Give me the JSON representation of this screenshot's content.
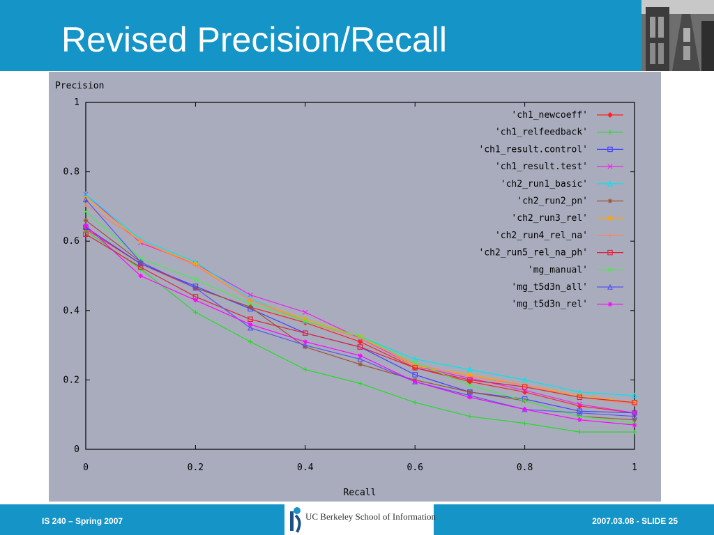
{
  "slide": {
    "title": "Revised Precision/Recall",
    "footer_left": "IS 240 – Spring 2007",
    "footer_right": "2007.03.08 - SLIDE 25",
    "logo_text": "UC Berkeley School of Information"
  },
  "colors": {
    "header": "#1594c8",
    "plot_background": "#a9acbd"
  },
  "chart_data": {
    "type": "line",
    "title": "",
    "xlabel": "Recall",
    "ylabel": "Precision",
    "xlim": [
      0,
      1
    ],
    "ylim": [
      0,
      1
    ],
    "x_ticks": [
      "0",
      "0.2",
      "0.4",
      "0.6",
      "0.8",
      "1"
    ],
    "y_ticks": [
      "0",
      "0.2",
      "0.4",
      "0.6",
      "0.8",
      "1"
    ],
    "grid": false,
    "legend_position": "top-right",
    "x": [
      0,
      0.1,
      0.2,
      0.3,
      0.4,
      0.5,
      0.6,
      0.7,
      0.8,
      0.9,
      1.0
    ],
    "series": [
      {
        "name": "'ch1_newcoeff'",
        "color": "#ff2020",
        "marker": "diamond",
        "values": [
          0.635,
          0.535,
          0.465,
          0.41,
          0.365,
          0.31,
          0.235,
          0.195,
          0.165,
          0.125,
          0.105
        ]
      },
      {
        "name": "'ch1_relfeedback'",
        "color": "#22dd22",
        "marker": "plus",
        "values": [
          0.63,
          0.52,
          0.395,
          0.31,
          0.23,
          0.19,
          0.135,
          0.095,
          0.075,
          0.05,
          0.05
        ]
      },
      {
        "name": "'ch1_result.control'",
        "color": "#4040ff",
        "marker": "square",
        "values": [
          0.64,
          0.535,
          0.47,
          0.405,
          0.335,
          0.295,
          0.215,
          0.165,
          0.145,
          0.11,
          0.105
        ]
      },
      {
        "name": "'ch1_result.test'",
        "color": "#ee22ee",
        "marker": "x",
        "values": [
          0.735,
          0.595,
          0.535,
          0.445,
          0.395,
          0.32,
          0.24,
          0.205,
          0.17,
          0.13,
          0.105
        ]
      },
      {
        "name": "'ch2_run1_basic'",
        "color": "#00e5ee",
        "marker": "triangle",
        "values": [
          0.735,
          0.605,
          0.54,
          0.435,
          0.37,
          0.325,
          0.26,
          0.23,
          0.2,
          0.165,
          0.155
        ]
      },
      {
        "name": "'ch2_run2_pn'",
        "color": "#a0522d",
        "marker": "asterisk",
        "values": [
          0.66,
          0.54,
          0.465,
          0.41,
          0.295,
          0.245,
          0.2,
          0.165,
          0.14,
          0.095,
          0.085
        ]
      },
      {
        "name": "'ch2_run3_rel'",
        "color": "#ffa500",
        "marker": "diamond",
        "values": [
          0.725,
          0.6,
          0.535,
          0.43,
          0.375,
          0.325,
          0.24,
          0.215,
          0.185,
          0.155,
          0.135
        ]
      },
      {
        "name": "'ch2_run4_rel_na'",
        "color": "#ff8060",
        "marker": "plus",
        "values": [
          0.705,
          0.6,
          0.53,
          0.43,
          0.37,
          0.32,
          0.245,
          0.21,
          0.185,
          0.15,
          0.13
        ]
      },
      {
        "name": "'ch2_run5_rel_na_ph'",
        "color": "#e0203a",
        "marker": "square",
        "values": [
          0.62,
          0.525,
          0.44,
          0.375,
          0.335,
          0.295,
          0.235,
          0.2,
          0.18,
          0.15,
          0.135
        ]
      },
      {
        "name": "'mg_manual'",
        "color": "#44ee44",
        "marker": "x",
        "values": [
          0.685,
          0.55,
          0.49,
          0.42,
          0.37,
          0.325,
          0.25,
          0.185,
          0.14,
          0.095,
          0.075
        ]
      },
      {
        "name": "'mg_t5d3n_all'",
        "color": "#5555ee",
        "marker": "triangle",
        "values": [
          0.72,
          0.54,
          0.465,
          0.35,
          0.3,
          0.26,
          0.195,
          0.155,
          0.115,
          0.105,
          0.095
        ]
      },
      {
        "name": "'mg_t5d3n_rel'",
        "color": "#ff00ff",
        "marker": "asterisk",
        "values": [
          0.645,
          0.5,
          0.43,
          0.36,
          0.31,
          0.27,
          0.195,
          0.15,
          0.115,
          0.085,
          0.07
        ]
      }
    ]
  }
}
